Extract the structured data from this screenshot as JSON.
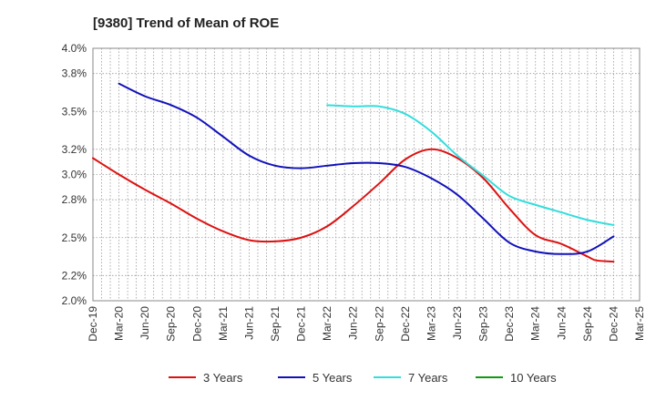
{
  "chart_data": {
    "type": "line",
    "title": "[9380]  Trend of Mean of ROE",
    "xlabel": "",
    "ylabel": "",
    "x_ticks": [
      "Dec-19",
      "Mar-20",
      "Jun-20",
      "Sep-20",
      "Dec-20",
      "Mar-21",
      "Jun-21",
      "Sep-21",
      "Dec-21",
      "Mar-22",
      "Jun-22",
      "Sep-22",
      "Dec-22",
      "Mar-23",
      "Jun-23",
      "Sep-23",
      "Dec-23",
      "Mar-24",
      "Jun-24",
      "Sep-24",
      "Dec-24",
      "Mar-25"
    ],
    "y_ticks": [
      "2.0%",
      "2.2%",
      "2.5%",
      "2.8%",
      "3.0%",
      "3.2%",
      "3.5%",
      "3.8%",
      "4.0%"
    ],
    "ylim": [
      2.0,
      4.0
    ],
    "grid": true,
    "legend_position": "bottom",
    "series": [
      {
        "name": "3 Years",
        "color": "#dd1111",
        "points": [
          [
            "Dec-19",
            3.13
          ],
          [
            "Mar-20",
            3.0
          ],
          [
            "Jun-20",
            2.88
          ],
          [
            "Sep-20",
            2.77
          ],
          [
            "Dec-20",
            2.65
          ],
          [
            "Mar-21",
            2.55
          ],
          [
            "Jun-21",
            2.48
          ],
          [
            "Sep-21",
            2.47
          ],
          [
            "Dec-21",
            2.5
          ],
          [
            "Mar-22",
            2.59
          ],
          [
            "Jun-22",
            2.75
          ],
          [
            "Sep-22",
            2.93
          ],
          [
            "Dec-22",
            3.12
          ],
          [
            "Mar-23",
            3.2
          ],
          [
            "Jun-23",
            3.13
          ],
          [
            "Sep-23",
            2.97
          ],
          [
            "Dec-23",
            2.73
          ],
          [
            "Mar-24",
            2.52
          ],
          [
            "Jun-24",
            2.45
          ],
          [
            "Sep-24",
            2.35
          ],
          [
            "Oct-24",
            2.32
          ],
          [
            "Dec-24",
            2.31
          ]
        ]
      },
      {
        "name": "5 Years",
        "color": "#1111bb",
        "points": [
          [
            "Mar-20",
            3.72
          ],
          [
            "Jun-20",
            3.62
          ],
          [
            "Sep-20",
            3.55
          ],
          [
            "Dec-20",
            3.45
          ],
          [
            "Mar-21",
            3.3
          ],
          [
            "Jun-21",
            3.15
          ],
          [
            "Sep-21",
            3.07
          ],
          [
            "Dec-21",
            3.05
          ],
          [
            "Mar-22",
            3.07
          ],
          [
            "Jun-22",
            3.09
          ],
          [
            "Sep-22",
            3.09
          ],
          [
            "Dec-22",
            3.06
          ],
          [
            "Mar-23",
            2.97
          ],
          [
            "Jun-23",
            2.84
          ],
          [
            "Sep-23",
            2.65
          ],
          [
            "Dec-23",
            2.46
          ],
          [
            "Mar-24",
            2.39
          ],
          [
            "Jun-24",
            2.37
          ],
          [
            "Sep-24",
            2.39
          ],
          [
            "Dec-24",
            2.51
          ]
        ]
      },
      {
        "name": "7 Years",
        "color": "#33dddd",
        "points": [
          [
            "Mar-22",
            3.55
          ],
          [
            "Jun-22",
            3.54
          ],
          [
            "Sep-22",
            3.54
          ],
          [
            "Dec-22",
            3.48
          ],
          [
            "Mar-23",
            3.34
          ],
          [
            "Jun-23",
            3.15
          ],
          [
            "Sep-23",
            2.99
          ],
          [
            "Dec-23",
            2.83
          ],
          [
            "Mar-24",
            2.76
          ],
          [
            "Jun-24",
            2.7
          ],
          [
            "Sep-24",
            2.64
          ],
          [
            "Dec-24",
            2.6
          ]
        ]
      },
      {
        "name": "10 Years",
        "color": "#119911",
        "points": []
      }
    ]
  }
}
